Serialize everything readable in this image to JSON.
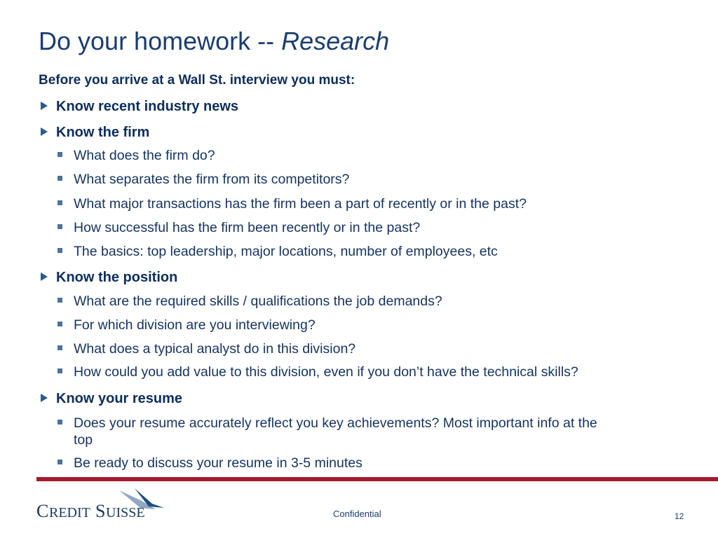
{
  "title": {
    "main": "Do your homework -- ",
    "emphasis": "Research"
  },
  "intro": "Before you arrive at a Wall St. interview you must:",
  "sections": [
    {
      "label": "Know recent industry news",
      "items": []
    },
    {
      "label": "Know the firm",
      "items": [
        "What does the firm do?",
        "What separates the firm from its competitors?",
        "What major transactions has the firm been a part of recently or in the past?",
        "How successful has the firm been recently or in the past?",
        "The basics: top leadership, major locations, number of employees, etc"
      ]
    },
    {
      "label": "Know the position",
      "items": [
        "What are the required skills / qualifications the job demands?",
        "For which division are you interviewing?",
        "What does a typical analyst do in this division?",
        "How could you add value to this division, even if you don’t have the technical skills?"
      ]
    },
    {
      "label": "Know your resume",
      "items": [
        "Does your resume accurately reflect you key achievements? Most important info at the",
        "Be ready to discuss your resume in 3-5 minutes"
      ],
      "wrap": "top"
    }
  ],
  "footer": {
    "logo": "CREDIT SUISSE",
    "confidential": "Confidential",
    "page": "12"
  },
  "colors": {
    "text": "#0d2d5a",
    "rule": "#a6192e",
    "bullet": "#4d7298"
  }
}
